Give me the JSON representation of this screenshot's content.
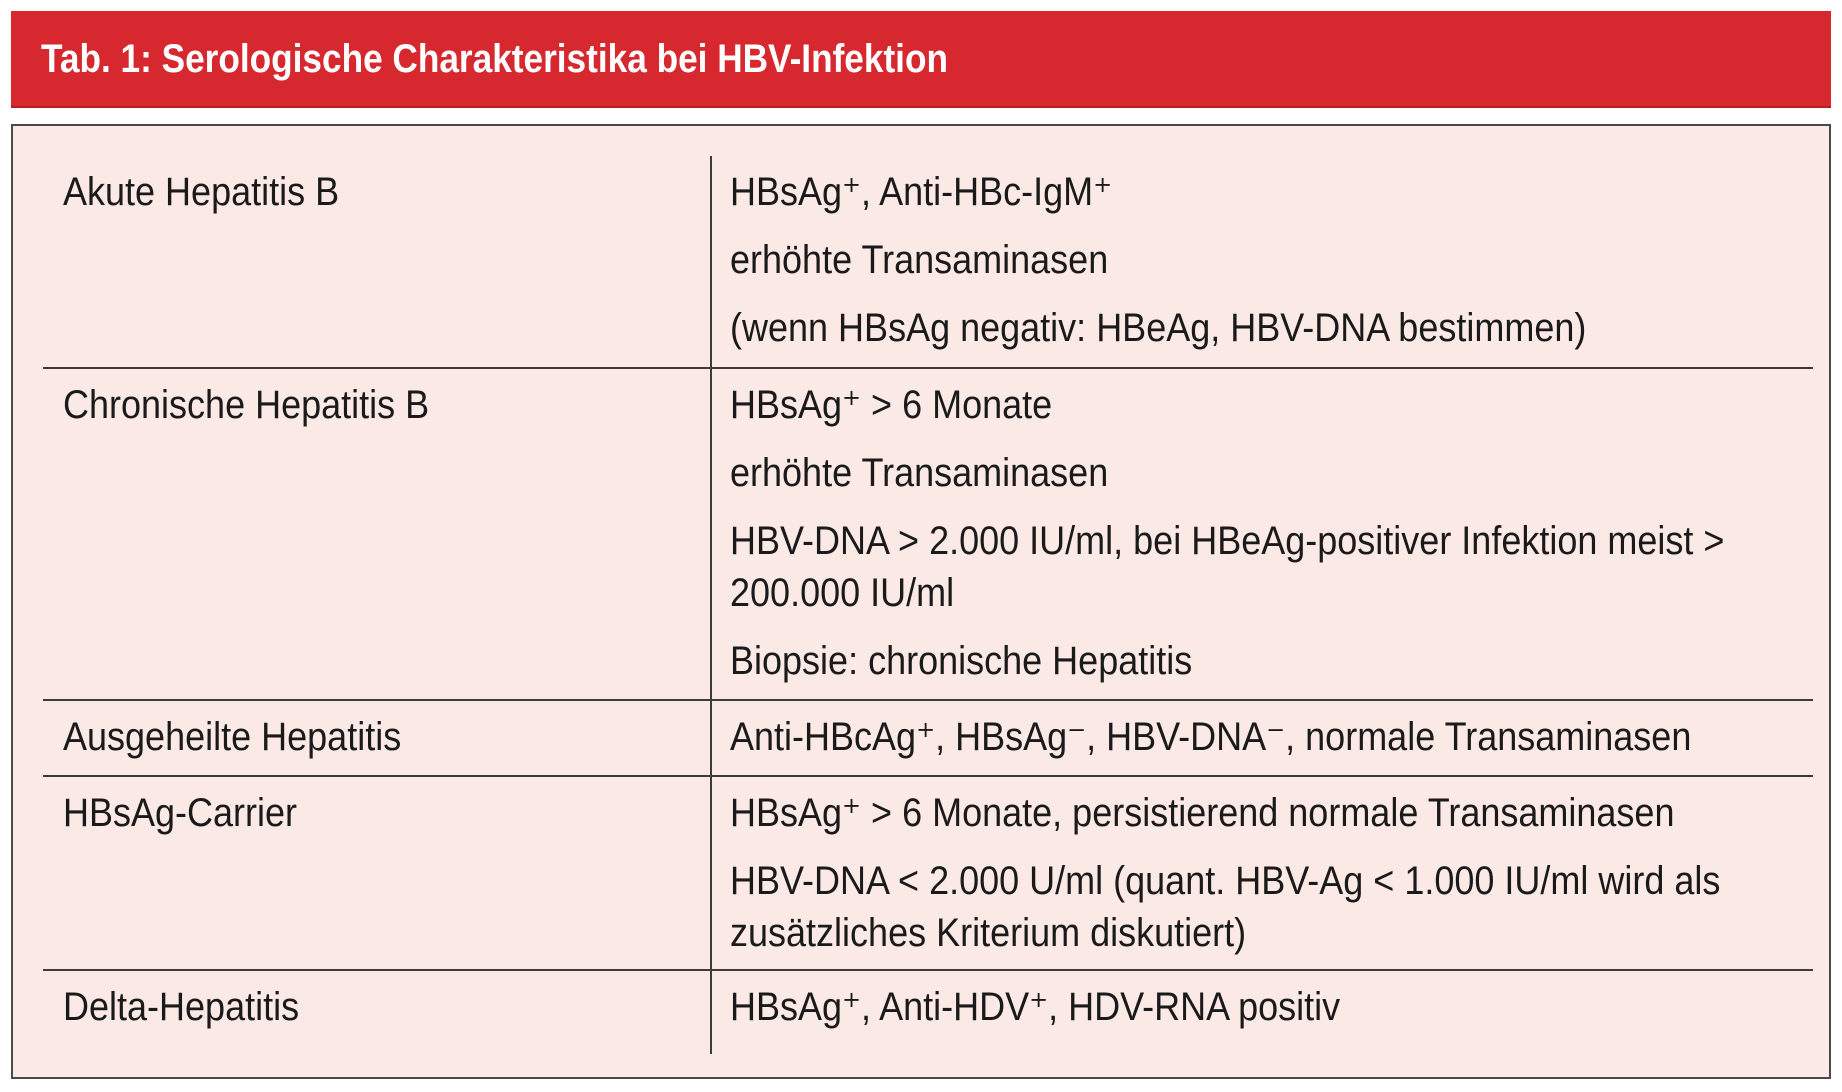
{
  "title": "Tab. 1: Serologische Charakteristika bei HBV-Infektion",
  "rows": [
    {
      "label": "Akute Hepatitis B",
      "lines": [
        "HBsAg⁺, Anti-HBc-IgM⁺",
        "erhöhte Transaminasen",
        "(wenn HBsAg negativ: HBeAg, HBV-DNA bestimmen)"
      ]
    },
    {
      "label": "Chronische Hepatitis B",
      "lines": [
        "HBsAg⁺ > 6 Monate",
        "erhöhte Transaminasen",
        "HBV-DNA > 2.000 IU/ml, bei HBeAg-positiver Infektion meist > 200.000 IU/ml",
        "Biopsie: chronische Hepatitis"
      ]
    },
    {
      "label": "Ausgeheilte Hepatitis",
      "lines": [
        "Anti-HBcAg⁺, HBsAg⁻, HBV-DNA⁻, normale Transaminasen"
      ]
    },
    {
      "label": "HBsAg-Carrier",
      "lines": [
        "HBsAg⁺ > 6 Monate, persistierend normale Transaminasen",
        "HBV-DNA < 2.000 U/ml (quant. HBV-Ag < 1.000 IU/ml wird als zusätzliches Kriterium diskutiert)"
      ]
    },
    {
      "label": "Delta-Hepatitis",
      "lines": [
        "HBsAg⁺, Anti-HDV⁺, HDV-RNA positiv"
      ]
    }
  ],
  "colors": {
    "title_bar": "#d7282f",
    "panel_background": "#fbe9e6",
    "text": "#1a1a1a"
  }
}
